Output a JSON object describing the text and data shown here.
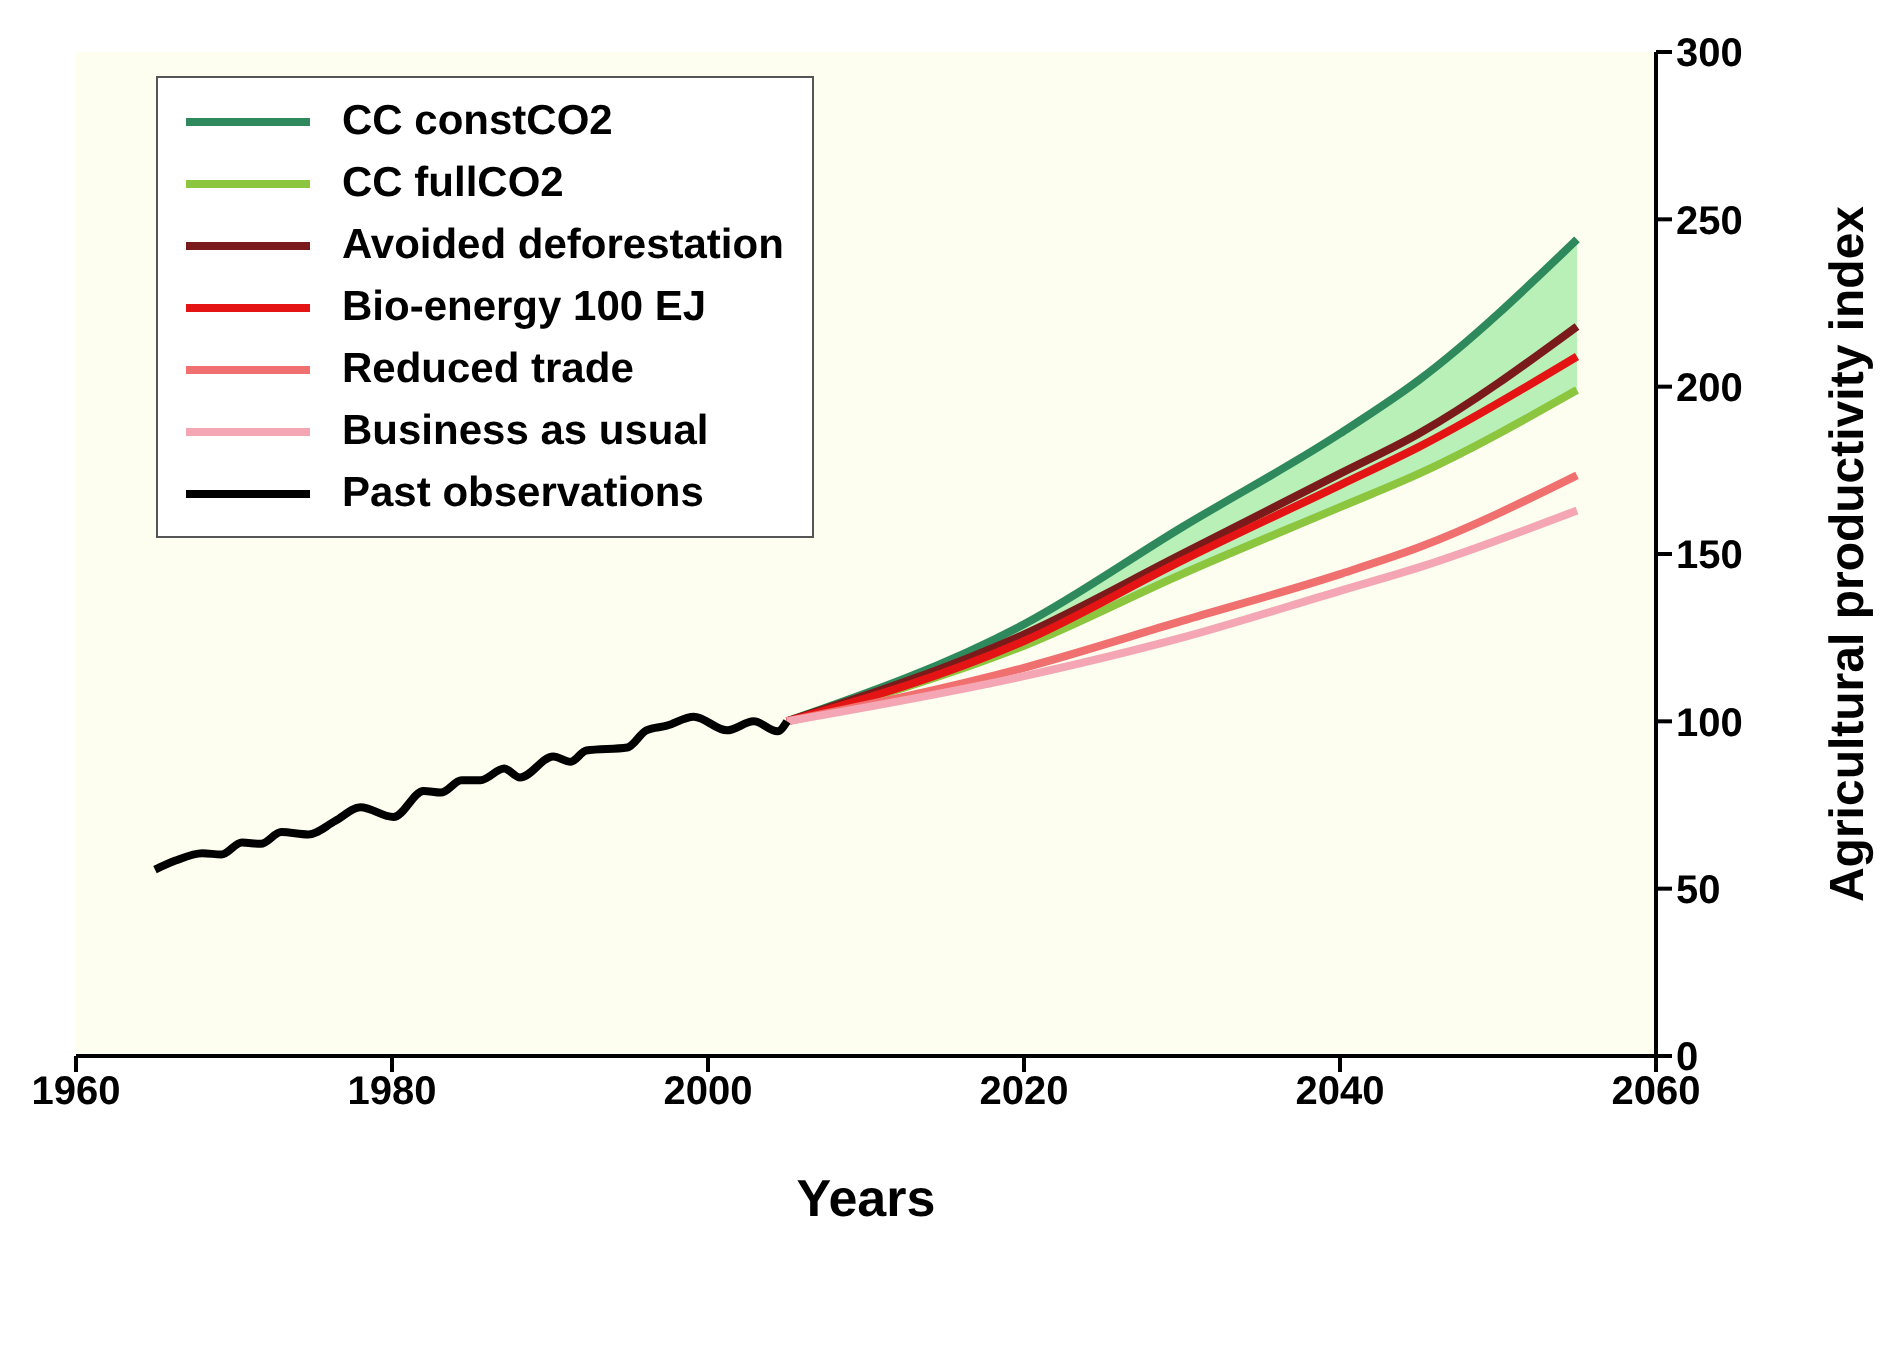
{
  "chart_data": {
    "type": "line",
    "xlabel": "Years",
    "ylabel": "Agricultural productivity index",
    "xlim": [
      1960,
      2060
    ],
    "xticks": [
      1960,
      1980,
      2000,
      2020,
      2040,
      2060
    ],
    "ylim": [
      0,
      300
    ],
    "yticks": [
      0,
      50,
      100,
      150,
      200,
      250,
      300
    ],
    "grid": false,
    "legend": "top left",
    "marker": "none",
    "line_style": "solid",
    "series": [
      {
        "name": "CC constCO2",
        "color": "#2e8a5c",
        "x": [
          2005,
          2020,
          2030,
          2040,
          2045,
          2055
        ],
        "values": [
          100,
          129,
          158,
          186,
          202,
          244
        ],
        "lower": [
          100,
          122.6,
          144,
          164,
          174,
          199
        ],
        "upper": [
          100,
          129,
          158,
          186,
          202,
          244
        ]
      },
      {
        "name": "CC fullCO2",
        "color": "#8cc63f",
        "x": [
          2005,
          2020,
          2030,
          2040,
          2045,
          2055
        ],
        "values": [
          100,
          122.6,
          144,
          164,
          174,
          199
        ]
      },
      {
        "name": "Avoided deforestation",
        "color": "#7b1a1a",
        "x": [
          2005,
          2020,
          2030,
          2040,
          2045,
          2055
        ],
        "values": [
          100,
          126,
          150,
          174,
          186,
          218
        ]
      },
      {
        "name": "Bio-energy 100 EJ",
        "color": "#e41414",
        "x": [
          2005,
          2020,
          2030,
          2040,
          2045,
          2055
        ],
        "values": [
          100,
          124,
          148,
          170.6,
          182,
          209
        ]
      },
      {
        "name": "Reduced trade",
        "color": "#f07070",
        "x": [
          2005,
          2020,
          2030,
          2040,
          2045,
          2055
        ],
        "values": [
          100,
          116,
          130,
          144,
          152,
          173.5
        ]
      },
      {
        "name": "Business as usual",
        "color": "#f4a6b4",
        "x": [
          2005,
          2020,
          2030,
          2040,
          2045,
          2055
        ],
        "values": [
          100,
          113.5,
          125,
          139,
          146,
          163
        ]
      },
      {
        "name": "Past observations",
        "color": "#000000",
        "x": [
          1965,
          1966.3,
          1968,
          1969.2,
          1970.5,
          1971.7,
          1973,
          1974.7,
          1976.4,
          1978,
          1980.1,
          1982,
          1983.1,
          1984.4,
          1985.6,
          1987.1,
          1988.1,
          1990.2,
          1991.3,
          1992.3,
          1994.9,
          1996.1,
          1997.4,
          1999.1,
          2001.2,
          2002.9,
          2004.4,
          2005
        ],
        "values": [
          55.7,
          58.4,
          60.6,
          60.2,
          63.8,
          63.4,
          66.9,
          66.2,
          70.2,
          74.3,
          71.4,
          79.2,
          78.7,
          82.4,
          82.4,
          85.9,
          83.2,
          89.5,
          87.9,
          91.3,
          92.2,
          97.3,
          98.7,
          101.4,
          97.3,
          100,
          97,
          100
        ]
      }
    ]
  }
}
